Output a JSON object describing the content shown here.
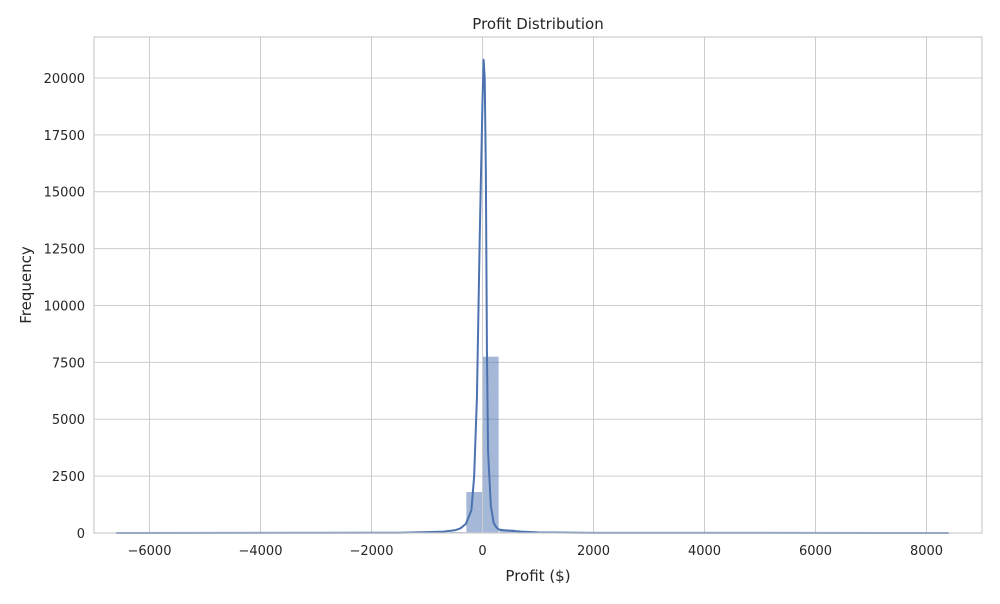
{
  "chart_data": {
    "type": "bar",
    "title": "Profit Distribution",
    "xlabel": "Profit ($)",
    "ylabel": "Frequency",
    "xlim": [
      -7000,
      9000
    ],
    "ylim": [
      0,
      21800
    ],
    "x_ticks": [
      -6000,
      -4000,
      -2000,
      0,
      2000,
      4000,
      6000,
      8000
    ],
    "x_tick_labels": [
      "−6000",
      "−4000",
      "−2000",
      "0",
      "2000",
      "4000",
      "6000",
      "8000"
    ],
    "y_ticks": [
      0,
      2500,
      5000,
      7500,
      10000,
      12500,
      15000,
      17500,
      20000
    ],
    "y_tick_labels": [
      "0",
      "2500",
      "5000",
      "7500",
      "10000",
      "12500",
      "15000",
      "17500",
      "20000"
    ],
    "grid": true,
    "bin_edges": [
      -6600,
      -6300,
      -6000,
      -5700,
      -5400,
      -5100,
      -4800,
      -4500,
      -4200,
      -3900,
      -3600,
      -3300,
      -3000,
      -2700,
      -2400,
      -2100,
      -1800,
      -1500,
      -1200,
      -900,
      -600,
      -300,
      0,
      300,
      600,
      900,
      1200,
      1500,
      1800,
      2100,
      2400,
      2700,
      3000,
      3300,
      3600,
      3900,
      4200,
      4500,
      4800,
      5100,
      5400,
      5700,
      6000,
      6300,
      6600,
      6900,
      7200,
      7500,
      7800,
      8100,
      8400
    ],
    "counts": [
      1,
      0,
      0,
      0,
      0,
      0,
      0,
      0,
      0,
      1,
      0,
      0,
      1,
      0,
      1,
      0,
      3,
      5,
      8,
      15,
      40,
      1800,
      7750,
      150,
      60,
      30,
      20,
      10,
      6,
      5,
      4,
      3,
      3,
      2,
      2,
      1,
      2,
      1,
      1,
      1,
      1,
      0,
      1,
      1,
      1,
      0,
      0,
      0,
      0,
      1
    ],
    "kde": {
      "x": [
        -6600,
        -1500,
        -1000,
        -700,
        -500,
        -400,
        -300,
        -200,
        -150,
        -100,
        -50,
        0,
        20,
        40,
        60,
        80,
        100,
        150,
        200,
        250,
        300,
        400,
        500,
        700,
        1000,
        1500,
        2000,
        8400
      ],
      "y": [
        0,
        10,
        40,
        60,
        120,
        200,
        400,
        1000,
        2500,
        6000,
        13000,
        19000,
        20800,
        20000,
        16000,
        8000,
        3600,
        1200,
        450,
        250,
        150,
        120,
        100,
        60,
        30,
        15,
        8,
        0
      ]
    },
    "colors": {
      "bar": "#4c72b0",
      "kde": "#4c72b0",
      "grid": "#cccccc",
      "axes": "#cccccc"
    }
  }
}
